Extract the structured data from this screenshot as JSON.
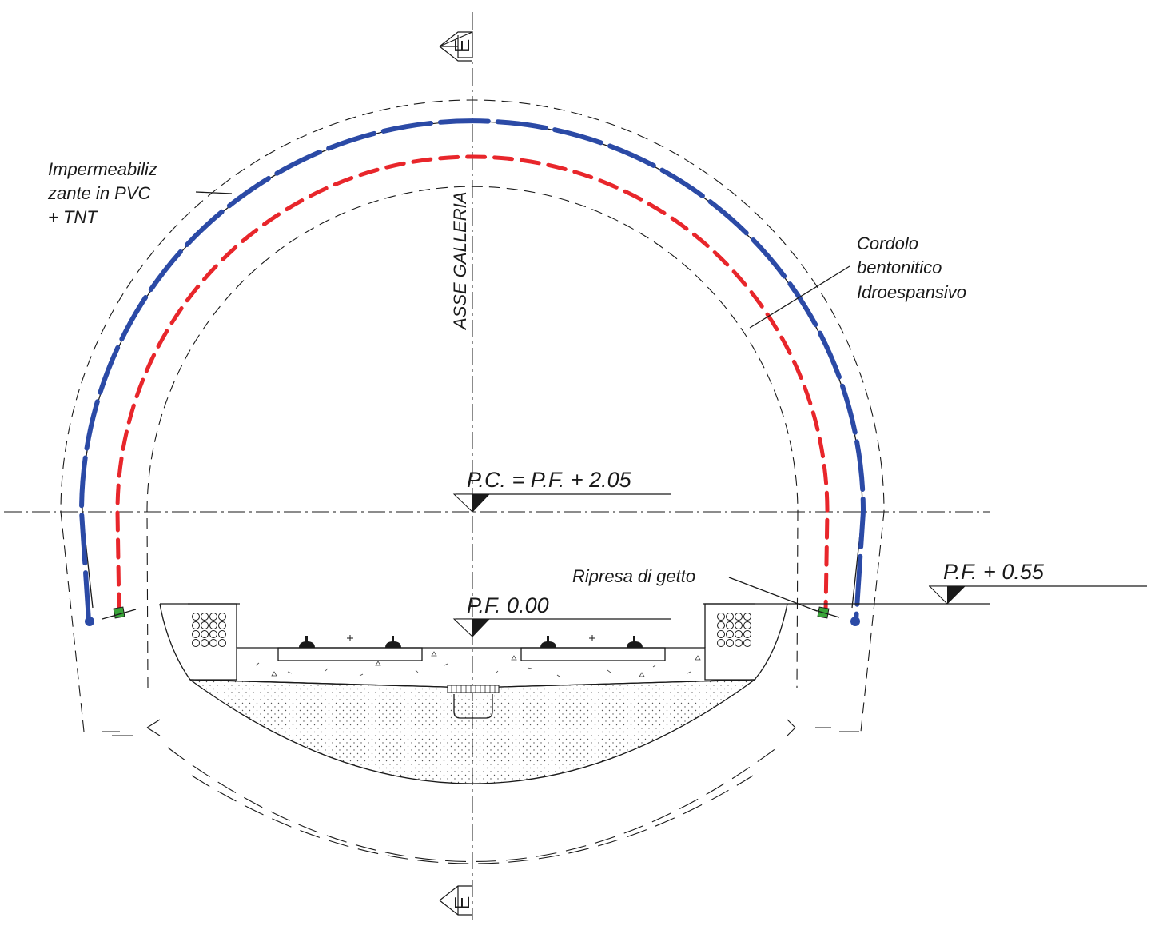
{
  "labels": {
    "membrane": [
      "Impermeabiliz",
      "zante in PVC",
      "+ TNT"
    ],
    "bentonite": [
      "Cordolo",
      "bentonitico",
      "Idroespansivo"
    ],
    "construction_joint": "Ripresa di getto",
    "axis": "ASSE GALLERIA",
    "section_mark_top": "E",
    "section_mark_bottom": "E"
  },
  "levels": {
    "crown_centre": "P.C. = P.F. + 2.05",
    "rail_level": "P.F. 0.00",
    "joint_level": "P.F. + 0.55"
  },
  "colors": {
    "membrane": "#2b4aa6",
    "bentonite": "#e8262b",
    "joint_marker": "#3aa53a",
    "lines": "#1a1a1a"
  }
}
